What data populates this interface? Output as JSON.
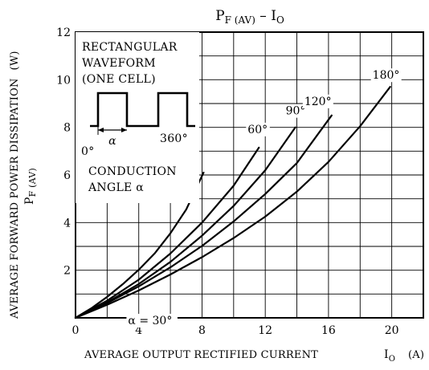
{
  "chart_data": {
    "type": "line",
    "title": {
      "main": "P",
      "sub": "F (AV)",
      "sep": " – ",
      "main2": "I",
      "sub2": "O"
    },
    "xlabel": {
      "text": "AVERAGE OUTPUT RECTIFIED CURRENT",
      "sym": "I",
      "sub": "O",
      "unit": "(A)"
    },
    "ylabel": {
      "text": "AVERAGE FORWARD POWER DISSIPATION",
      "sym": "P",
      "sub": "F (AV)",
      "unit": "(W)"
    },
    "xlim": [
      0,
      22
    ],
    "ylim": [
      0,
      12
    ],
    "xticks": [
      0,
      4,
      8,
      12,
      16,
      20
    ],
    "yticks": [
      2,
      4,
      6,
      8,
      10,
      12
    ],
    "grid": true,
    "series": [
      {
        "name": "α = 30°",
        "label_text": "α = 30°",
        "x": [
          0,
          1,
          2,
          3,
          4,
          5,
          6,
          7,
          8.1
        ],
        "y": [
          0,
          0.4,
          0.88,
          1.42,
          2.02,
          2.7,
          3.55,
          4.55,
          6.1
        ]
      },
      {
        "name": "60°",
        "label_text": "60°",
        "x": [
          0,
          2,
          4,
          6,
          8,
          10,
          11.6
        ],
        "y": [
          0,
          0.72,
          1.6,
          2.7,
          4.0,
          5.55,
          7.15
        ]
      },
      {
        "name": "90°",
        "label_text": "90°",
        "x": [
          0,
          2,
          4,
          6,
          8,
          10,
          12,
          13.9
        ],
        "y": [
          0,
          0.65,
          1.42,
          2.35,
          3.45,
          4.7,
          6.2,
          8.0
        ]
      },
      {
        "name": "120°",
        "label_text": "120°",
        "x": [
          0,
          2,
          4,
          6,
          8,
          10,
          12,
          14,
          16.2
        ],
        "y": [
          0,
          0.62,
          1.32,
          2.12,
          3.02,
          4.05,
          5.2,
          6.5,
          8.5
        ]
      },
      {
        "name": "180°",
        "label_text": "180°",
        "x": [
          0,
          2,
          4,
          6,
          8,
          10,
          12,
          14,
          16,
          18,
          19.9
        ],
        "y": [
          0,
          0.55,
          1.15,
          1.82,
          2.55,
          3.35,
          4.25,
          5.3,
          6.55,
          8.05,
          9.7
        ]
      }
    ],
    "inset": {
      "waveform_lines": [
        "RECTANGULAR",
        "WAVEFORM",
        "(ONE CELL)"
      ],
      "angle_symbol": "α",
      "zero_label": "0°",
      "period_label": "360°",
      "conduction_lines": [
        "CONDUCTION",
        "ANGLE α"
      ]
    }
  }
}
